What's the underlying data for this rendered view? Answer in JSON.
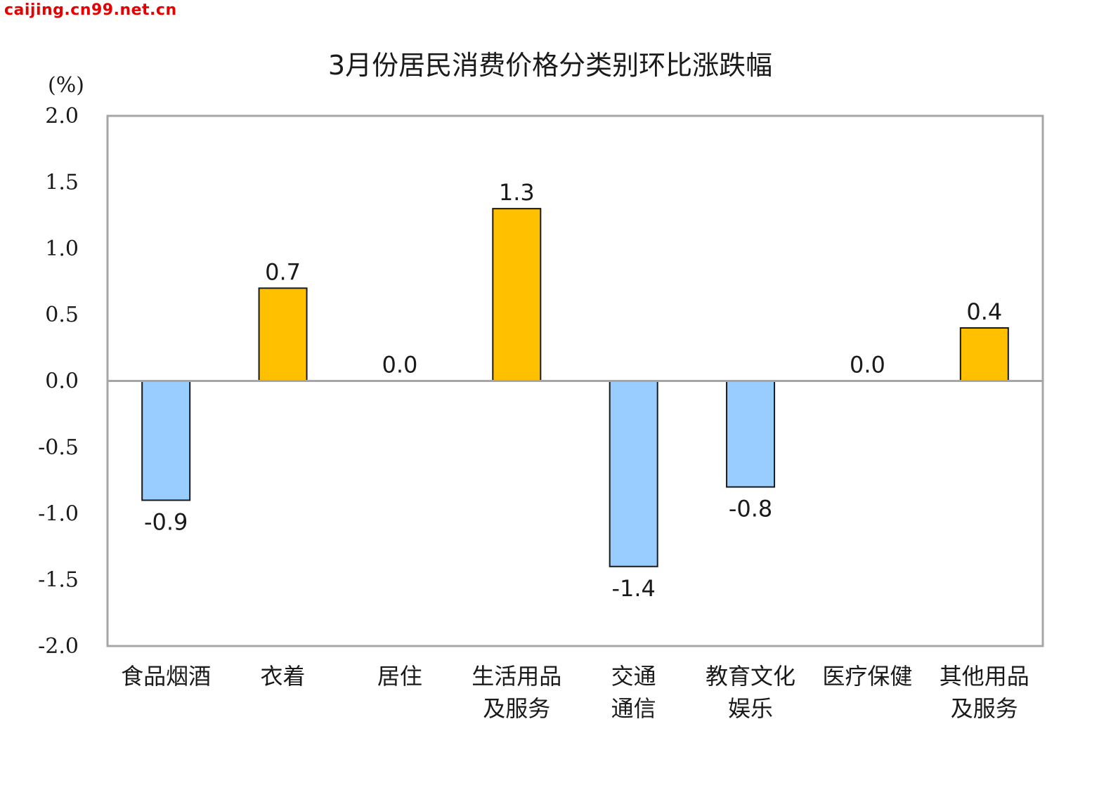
{
  "watermark": "caijing.cn99.net.cn",
  "chart_data": {
    "type": "bar",
    "title": "3月份居民消费价格分类别环比涨跌幅",
    "ylabel": "(%)",
    "ylim": [
      -2.0,
      2.0
    ],
    "yticks": [
      "2.0",
      "1.5",
      "1.0",
      "0.5",
      "0.0",
      "-0.5",
      "-1.0",
      "-1.5",
      "-2.0"
    ],
    "ytick_values": [
      2.0,
      1.5,
      1.0,
      0.5,
      0.0,
      -0.5,
      -1.0,
      -1.5,
      -2.0
    ],
    "categories": [
      [
        "食品烟酒"
      ],
      [
        "衣着"
      ],
      [
        "居住"
      ],
      [
        "生活用品",
        "及服务"
      ],
      [
        "交通",
        "通信"
      ],
      [
        "教育文化",
        "娱乐"
      ],
      [
        "医疗保健"
      ],
      [
        "其他用品",
        "及服务"
      ]
    ],
    "values": [
      -0.9,
      0.7,
      0.0,
      1.3,
      -1.4,
      -0.8,
      0.0,
      0.4
    ],
    "value_labels": [
      "-0.9",
      "0.7",
      "0.0",
      "1.3",
      "-1.4",
      "-0.8",
      "0.0",
      "0.4"
    ],
    "colors": {
      "positive": "#ffc000",
      "negative": "#99ccff",
      "bar_outline": "#1a1a1a",
      "frame": "#a6a6a6",
      "zero_line": "#a6a6a6"
    },
    "grid": false,
    "legend": "none"
  }
}
